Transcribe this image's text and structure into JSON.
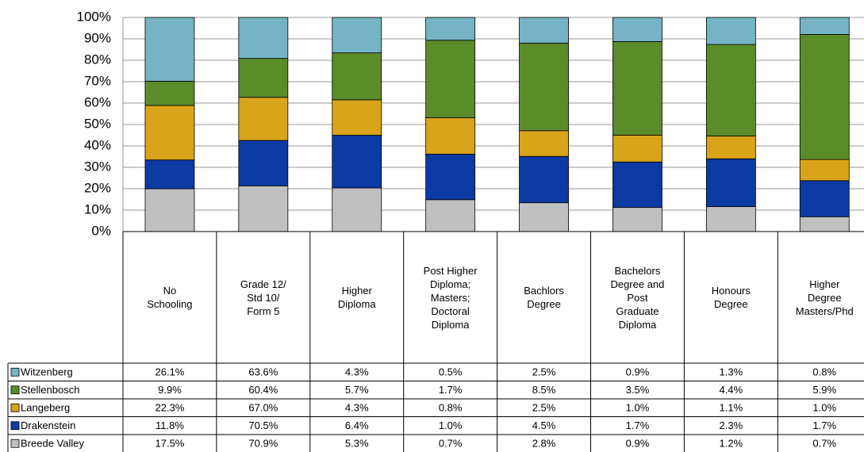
{
  "chart_data": {
    "type": "bar",
    "stacking": "percent",
    "categories": [
      "No Schooling",
      "Grade 12/ Std 10/ Form 5",
      "Higher Diploma",
      "Post Higher Diploma; Masters; Doctoral Diploma",
      "Bachlors Degree",
      "Bachelors Degree and Post Graduate Diploma",
      "Honours Degree",
      "Higher Degree Masters/Phd"
    ],
    "series": [
      {
        "name": "Witzenberg",
        "color": "#76b3c4",
        "values": [
          26.1,
          63.6,
          4.3,
          0.5,
          2.5,
          0.9,
          1.3,
          0.8
        ],
        "value_labels": [
          "26.1%",
          "63.6%",
          "4.3%",
          "0.5%",
          "2.5%",
          "0.9%",
          "1.3%",
          "0.8%"
        ]
      },
      {
        "name": "Stellenbosch",
        "color": "#5b8c2a",
        "values": [
          9.9,
          60.4,
          5.7,
          1.7,
          8.5,
          3.5,
          4.4,
          5.9
        ],
        "value_labels": [
          "9.9%",
          "60.4%",
          "5.7%",
          "1.7%",
          "8.5%",
          "3.5%",
          "4.4%",
          "5.9%"
        ]
      },
      {
        "name": "Langeberg",
        "color": "#d9a41a",
        "values": [
          22.3,
          67.0,
          4.3,
          0.8,
          2.5,
          1.0,
          1.1,
          1.0
        ],
        "value_labels": [
          "22.3%",
          "67.0%",
          "4.3%",
          "0.8%",
          "2.5%",
          "1.0%",
          "1.1%",
          "1.0%"
        ]
      },
      {
        "name": "Drakenstein",
        "color": "#0b3aa3",
        "values": [
          11.8,
          70.5,
          6.4,
          1.0,
          4.5,
          1.7,
          2.3,
          1.7
        ],
        "value_labels": [
          "11.8%",
          "70.5%",
          "6.4%",
          "1.0%",
          "4.5%",
          "1.7%",
          "2.3%",
          "1.7%"
        ]
      },
      {
        "name": "Breede Valley",
        "color": "#c0c0c0",
        "values": [
          17.5,
          70.9,
          5.3,
          0.7,
          2.8,
          0.9,
          1.2,
          0.7
        ],
        "value_labels": [
          "17.5%",
          "70.9%",
          "5.3%",
          "0.7%",
          "2.8%",
          "0.9%",
          "1.2%",
          "0.7%"
        ]
      }
    ],
    "ylim": [
      0,
      100
    ],
    "yticks": [
      {
        "value": 0,
        "label": "0%"
      },
      {
        "value": 10,
        "label": "10%"
      },
      {
        "value": 20,
        "label": "20%"
      },
      {
        "value": 30,
        "label": "30%"
      },
      {
        "value": 40,
        "label": "40%"
      },
      {
        "value": 50,
        "label": "50%"
      },
      {
        "value": 60,
        "label": "60%"
      },
      {
        "value": 70,
        "label": "70%"
      },
      {
        "value": 80,
        "label": "80%"
      },
      {
        "value": 90,
        "label": "90%"
      },
      {
        "value": 100,
        "label": "100%"
      }
    ],
    "grid": true
  }
}
